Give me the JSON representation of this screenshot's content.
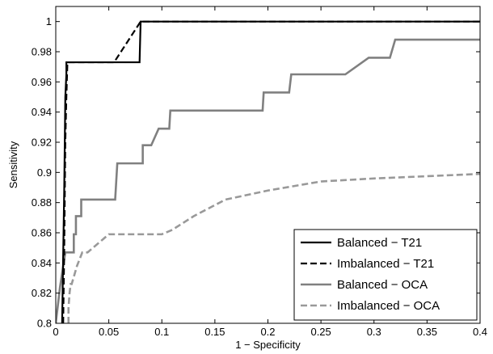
{
  "chart_data": {
    "type": "line",
    "title": "",
    "xlabel": "1 − Specificity",
    "ylabel": "Sensitivity",
    "xlim": [
      0,
      0.4
    ],
    "ylim": [
      0.8,
      1.01
    ],
    "xticks": [
      0,
      0.05,
      0.1,
      0.15,
      0.2,
      0.25,
      0.3,
      0.35,
      0.4
    ],
    "xtick_labels": [
      "0",
      "0.05",
      "0.1",
      "0.15",
      "0.2",
      "0.25",
      "0.3",
      "0.35",
      "0.4"
    ],
    "yticks": [
      0.8,
      0.82,
      0.84,
      0.86,
      0.88,
      0.9,
      0.92,
      0.94,
      0.96,
      0.98,
      1.0
    ],
    "ytick_labels": [
      "0.8",
      "0.82",
      "0.84",
      "0.86",
      "0.88",
      "0.9",
      "0.92",
      "0.94",
      "0.96",
      "0.98",
      "1"
    ],
    "grid": false,
    "legend_position": "bottom-right",
    "series": [
      {
        "name": "Balanced − T21",
        "color": "#000000",
        "dash": "solid",
        "x": [
          0.006,
          0.008,
          0.009,
          0.01,
          0.01,
          0.079,
          0.08,
          0.4
        ],
        "y": [
          0.8,
          0.89,
          0.95,
          0.965,
          0.973,
          0.973,
          1.0,
          1.0
        ]
      },
      {
        "name": "Imbalanced − T21",
        "color": "#000000",
        "dash": "dashed",
        "x": [
          0.007,
          0.008,
          0.009,
          0.01,
          0.011,
          0.055,
          0.08,
          0.4
        ],
        "y": [
          0.8,
          0.85,
          0.92,
          0.95,
          0.973,
          0.973,
          1.0,
          1.0
        ]
      },
      {
        "name": "Balanced − OCA",
        "color": "#808080",
        "dash": "solid",
        "x": [
          0.0,
          0.004,
          0.004,
          0.009,
          0.009,
          0.017,
          0.017,
          0.019,
          0.019,
          0.024,
          0.024,
          0.056,
          0.057,
          0.058,
          0.07,
          0.071,
          0.082,
          0.082,
          0.089,
          0.09,
          0.097,
          0.1,
          0.107,
          0.108,
          0.195,
          0.196,
          0.22,
          0.222,
          0.27,
          0.273,
          0.295,
          0.297,
          0.315,
          0.32,
          0.4
        ],
        "y": [
          0.8,
          0.824,
          0.824,
          0.847,
          0.847,
          0.847,
          0.859,
          0.859,
          0.871,
          0.871,
          0.882,
          0.882,
          0.894,
          0.906,
          0.906,
          0.906,
          0.906,
          0.918,
          0.918,
          0.918,
          0.929,
          0.929,
          0.929,
          0.941,
          0.941,
          0.953,
          0.953,
          0.965,
          0.965,
          0.965,
          0.976,
          0.976,
          0.976,
          0.988,
          0.988
        ]
      },
      {
        "name": "Imbalanced − OCA",
        "color": "#999999",
        "dash": "dashed",
        "x": [
          0.012,
          0.012,
          0.013,
          0.014,
          0.015,
          0.02,
          0.025,
          0.03,
          0.04,
          0.05,
          0.06,
          0.1,
          0.11,
          0.13,
          0.16,
          0.2,
          0.25,
          0.3,
          0.4
        ],
        "y": [
          0.8,
          0.81,
          0.82,
          0.826,
          0.826,
          0.838,
          0.847,
          0.847,
          0.853,
          0.859,
          0.859,
          0.859,
          0.862,
          0.871,
          0.882,
          0.888,
          0.894,
          0.896,
          0.899
        ]
      }
    ]
  }
}
